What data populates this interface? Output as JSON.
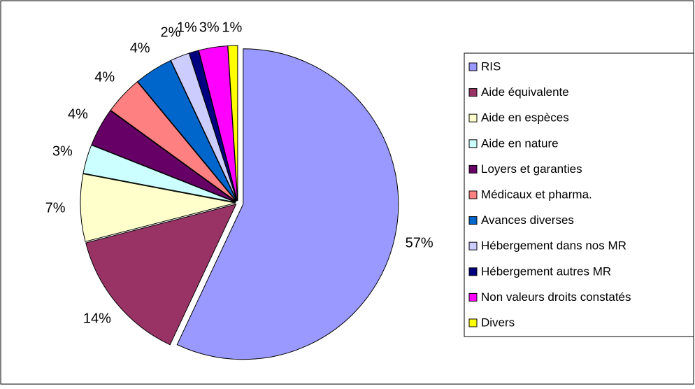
{
  "chart_data": {
    "type": "pie",
    "categories": [
      "RIS",
      "Aide équivalente",
      "Aide en espèces",
      "Aide en nature",
      "Loyers et garanties",
      "Médicaux et pharma.",
      "Avances diverses",
      "Hébergement dans nos MR",
      "Hébergement autres MR",
      "Non valeurs droits constatés",
      "Divers"
    ],
    "values": [
      57,
      14,
      7,
      3,
      4,
      4,
      4,
      2,
      1,
      3,
      1
    ],
    "value_labels": [
      "57%",
      "14%",
      "7%",
      "3%",
      "4%",
      "4%",
      "4%",
      "2%",
      "1%",
      "3%",
      "1%"
    ],
    "colors": [
      "#9999ff",
      "#993366",
      "#ffffcc",
      "#ccffff",
      "#660066",
      "#ff8080",
      "#0066cc",
      "#ccccff",
      "#000080",
      "#ff00ff",
      "#ffff00"
    ],
    "legend": "right"
  }
}
